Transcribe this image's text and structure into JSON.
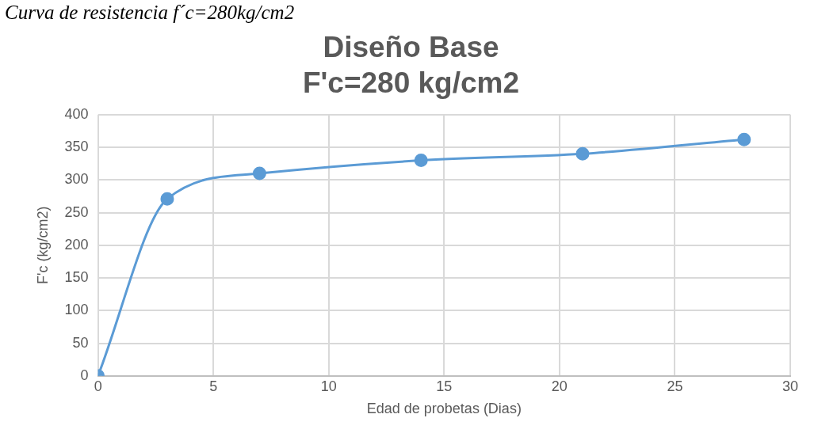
{
  "chart_data": {
    "type": "line",
    "title": [
      "Diseño Base",
      "F'c=280 kg/cm2"
    ],
    "annotations": [
      "Curva de resistencia f´c=280kg/cm2"
    ],
    "xlabel": "Edad de probetas (Dias)",
    "ylabel": "F'c (kg/cm2)",
    "x": [
      0,
      3,
      7,
      14,
      21,
      28
    ],
    "series": [
      {
        "color": "#5b9bd5",
        "values": [
          0,
          271,
          310,
          330,
          340,
          362
        ]
      }
    ],
    "xlim": [
      0,
      30
    ],
    "xticks": [
      0,
      5,
      10,
      15,
      20,
      25,
      30
    ],
    "ylim": [
      0,
      400
    ],
    "yticks": [
      0,
      50,
      100,
      150,
      200,
      250,
      300,
      350,
      400
    ],
    "grid": true,
    "legend": false,
    "marker": "circle",
    "line_style": "solid"
  }
}
